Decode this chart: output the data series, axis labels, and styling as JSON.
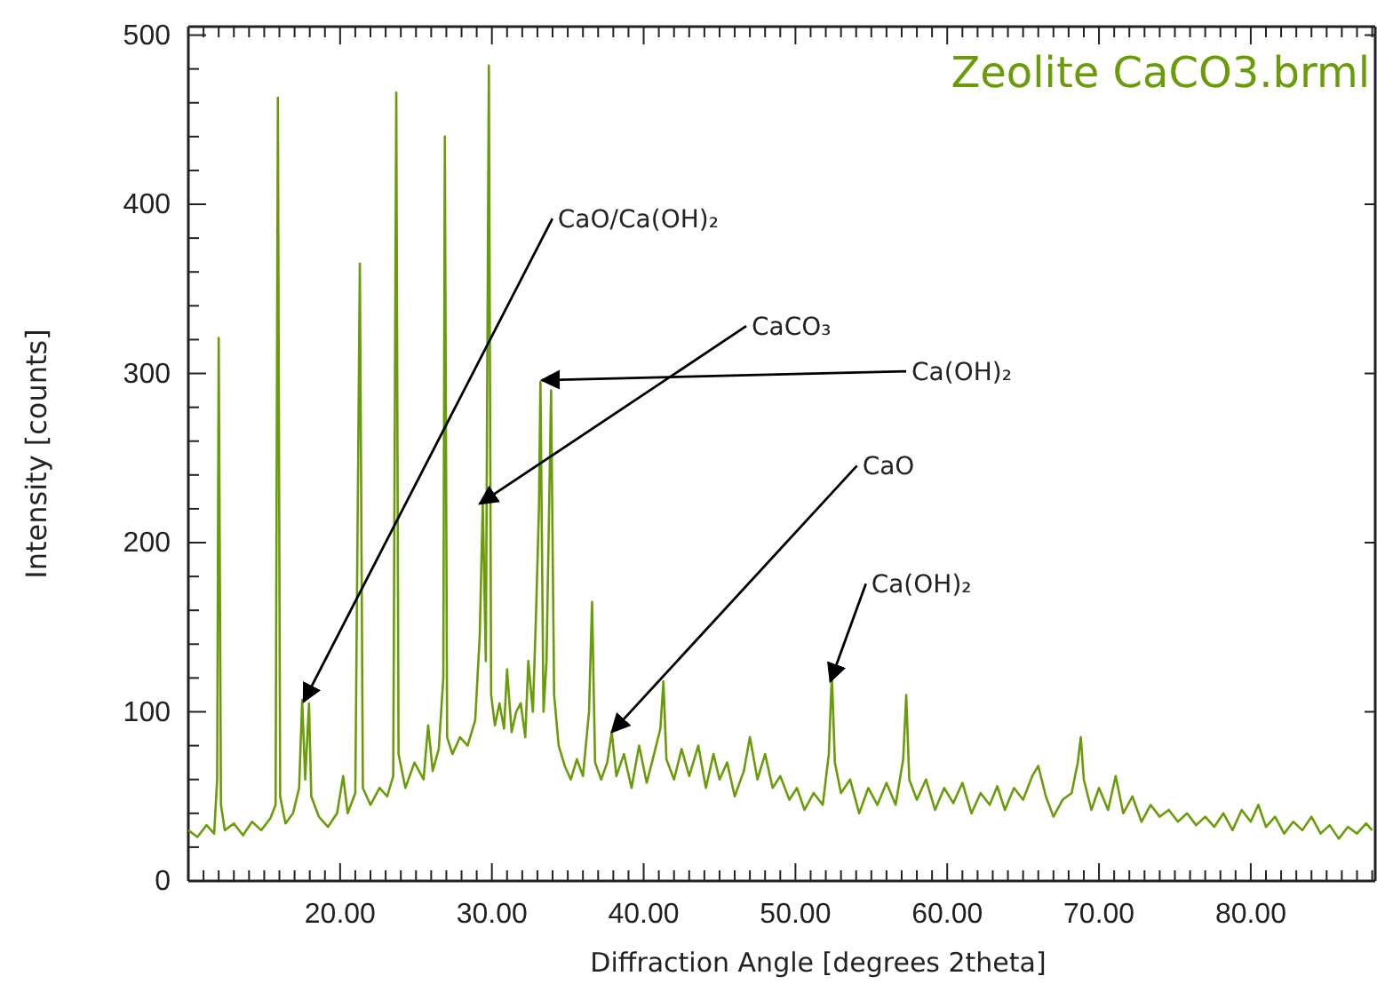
{
  "chart_data": {
    "type": "line",
    "title": "Zeolite CaCO3.brml",
    "xlabel": "Diffraction Angle [degrees 2theta]",
    "ylabel": "Intensity [counts]",
    "xlim": [
      10,
      88.2
    ],
    "ylim": [
      0,
      505
    ],
    "xticks": [
      {
        "value": 11,
        "label": null
      },
      {
        "value": 12,
        "label": null
      },
      {
        "value": 13,
        "label": null
      },
      {
        "value": 14,
        "label": null
      },
      {
        "value": 15,
        "label": null
      },
      {
        "value": 16,
        "label": null
      },
      {
        "value": 17,
        "label": null
      },
      {
        "value": 18,
        "label": null
      },
      {
        "value": 19,
        "label": null
      },
      {
        "value": 20,
        "label": "20.00"
      },
      {
        "value": 21,
        "label": null
      },
      {
        "value": 22,
        "label": null
      },
      {
        "value": 23,
        "label": null
      },
      {
        "value": 24,
        "label": null
      },
      {
        "value": 25,
        "label": null
      },
      {
        "value": 26,
        "label": null
      },
      {
        "value": 27,
        "label": null
      },
      {
        "value": 28,
        "label": null
      },
      {
        "value": 29,
        "label": null
      },
      {
        "value": 30,
        "label": "30.00"
      },
      {
        "value": 31,
        "label": null
      },
      {
        "value": 32,
        "label": null
      },
      {
        "value": 33,
        "label": null
      },
      {
        "value": 34,
        "label": null
      },
      {
        "value": 35,
        "label": null
      },
      {
        "value": 36,
        "label": null
      },
      {
        "value": 37,
        "label": null
      },
      {
        "value": 38,
        "label": null
      },
      {
        "value": 39,
        "label": null
      },
      {
        "value": 40,
        "label": "40.00"
      },
      {
        "value": 41,
        "label": null
      },
      {
        "value": 42,
        "label": null
      },
      {
        "value": 43,
        "label": null
      },
      {
        "value": 44,
        "label": null
      },
      {
        "value": 45,
        "label": null
      },
      {
        "value": 46,
        "label": null
      },
      {
        "value": 47,
        "label": null
      },
      {
        "value": 48,
        "label": null
      },
      {
        "value": 49,
        "label": null
      },
      {
        "value": 50,
        "label": "50.00"
      },
      {
        "value": 51,
        "label": null
      },
      {
        "value": 52,
        "label": null
      },
      {
        "value": 53,
        "label": null
      },
      {
        "value": 54,
        "label": null
      },
      {
        "value": 55,
        "label": null
      },
      {
        "value": 56,
        "label": null
      },
      {
        "value": 57,
        "label": null
      },
      {
        "value": 58,
        "label": null
      },
      {
        "value": 59,
        "label": null
      },
      {
        "value": 60,
        "label": "60.00"
      },
      {
        "value": 61,
        "label": null
      },
      {
        "value": 62,
        "label": null
      },
      {
        "value": 63,
        "label": null
      },
      {
        "value": 64,
        "label": null
      },
      {
        "value": 65,
        "label": null
      },
      {
        "value": 66,
        "label": null
      },
      {
        "value": 67,
        "label": null
      },
      {
        "value": 68,
        "label": null
      },
      {
        "value": 69,
        "label": null
      },
      {
        "value": 70,
        "label": "70.00"
      },
      {
        "value": 71,
        "label": null
      },
      {
        "value": 72,
        "label": null
      },
      {
        "value": 73,
        "label": null
      },
      {
        "value": 74,
        "label": null
      },
      {
        "value": 75,
        "label": null
      },
      {
        "value": 76,
        "label": null
      },
      {
        "value": 77,
        "label": null
      },
      {
        "value": 78,
        "label": null
      },
      {
        "value": 79,
        "label": null
      },
      {
        "value": 80,
        "label": "80.00"
      },
      {
        "value": 81,
        "label": null
      },
      {
        "value": 82,
        "label": null
      },
      {
        "value": 83,
        "label": null
      },
      {
        "value": 84,
        "label": null
      },
      {
        "value": 85,
        "label": null
      },
      {
        "value": 86,
        "label": null
      },
      {
        "value": 87,
        "label": null
      },
      {
        "value": 88,
        "label": null
      }
    ],
    "yticks": [
      0,
      {
        "value": 20,
        "label": null
      },
      {
        "value": 40,
        "label": null
      },
      {
        "value": 60,
        "label": null
      },
      {
        "value": 80,
        "label": null
      },
      100,
      {
        "value": 120,
        "label": null
      },
      {
        "value": 140,
        "label": null
      },
      {
        "value": 160,
        "label": null
      },
      {
        "value": 180,
        "label": null
      },
      200,
      {
        "value": 220,
        "label": null
      },
      {
        "value": 240,
        "label": null
      },
      {
        "value": 260,
        "label": null
      },
      {
        "value": 280,
        "label": null
      },
      300,
      {
        "value": 320,
        "label": null
      },
      {
        "value": 340,
        "label": null
      },
      {
        "value": 360,
        "label": null
      },
      {
        "value": 380,
        "label": null
      },
      400,
      {
        "value": 420,
        "label": null
      },
      {
        "value": 440,
        "label": null
      },
      {
        "value": 460,
        "label": null
      },
      {
        "value": 480,
        "label": null
      },
      500
    ],
    "annotations": [
      {
        "text": "CaO/Ca(OH)₂",
        "x": 17.6,
        "y": 106
      },
      {
        "text": "CaCO₃",
        "x": 29.2,
        "y": 223
      },
      {
        "text": "Ca(OH)₂",
        "x": 33.3,
        "y": 296
      },
      {
        "text": "CaO",
        "x": 37.9,
        "y": 88
      },
      {
        "text": "Ca(OH)₂",
        "x": 52.3,
        "y": 118
      }
    ],
    "series": [
      {
        "color": "#6a9c0a",
        "x": [
          10.0,
          10.6,
          11.2,
          11.7,
          11.9,
          12.0,
          12.15,
          12.4,
          13.0,
          13.6,
          14.2,
          14.8,
          15.4,
          15.75,
          15.9,
          16.05,
          16.4,
          16.9,
          17.3,
          17.5,
          17.7,
          17.95,
          18.1,
          18.6,
          19.2,
          19.8,
          20.2,
          20.5,
          21.0,
          21.3,
          21.5,
          22.0,
          22.6,
          23.1,
          23.5,
          23.7,
          23.85,
          24.3,
          24.9,
          25.5,
          25.8,
          26.1,
          26.5,
          26.8,
          26.9,
          27.05,
          27.4,
          27.9,
          28.4,
          28.9,
          29.2,
          29.4,
          29.6,
          29.8,
          29.95,
          30.2,
          30.5,
          30.8,
          31.0,
          31.3,
          31.6,
          31.9,
          32.2,
          32.4,
          32.7,
          32.9,
          33.1,
          33.2,
          33.4,
          33.6,
          33.9,
          34.1,
          34.4,
          34.8,
          35.2,
          35.6,
          36.0,
          36.4,
          36.6,
          36.8,
          37.2,
          37.6,
          37.9,
          38.2,
          38.7,
          39.2,
          39.7,
          40.2,
          40.6,
          41.1,
          41.3,
          41.5,
          42.0,
          42.5,
          43.0,
          43.6,
          44.1,
          44.6,
          45.0,
          45.5,
          46.0,
          46.6,
          47.0,
          47.5,
          48.0,
          48.5,
          49.0,
          49.6,
          50.1,
          50.6,
          51.2,
          51.8,
          52.2,
          52.4,
          52.6,
          53.0,
          53.6,
          54.2,
          54.8,
          55.4,
          56.0,
          56.6,
          57.1,
          57.3,
          57.5,
          58.0,
          58.6,
          59.2,
          59.8,
          60.4,
          61.0,
          61.6,
          62.2,
          62.8,
          63.3,
          63.8,
          64.4,
          65.0,
          65.6,
          66.0,
          66.5,
          67.0,
          67.6,
          68.2,
          68.6,
          68.8,
          69.0,
          69.5,
          70.0,
          70.6,
          71.1,
          71.6,
          72.2,
          72.8,
          73.4,
          74.0,
          74.6,
          75.2,
          75.8,
          76.4,
          77.0,
          77.6,
          78.2,
          78.8,
          79.4,
          80.0,
          80.5,
          81.0,
          81.6,
          82.2,
          82.8,
          83.4,
          84.0,
          84.6,
          85.2,
          85.8,
          86.4,
          87.0,
          87.6,
          88.0
        ],
        "values": [
          30,
          26,
          33,
          28,
          60,
          321,
          45,
          30,
          34,
          27,
          35,
          30,
          37,
          45,
          463,
          50,
          34,
          40,
          55,
          107,
          60,
          105,
          50,
          38,
          32,
          40,
          62,
          40,
          52,
          365,
          55,
          45,
          55,
          50,
          62,
          466,
          75,
          55,
          70,
          60,
          92,
          65,
          78,
          120,
          440,
          85,
          75,
          85,
          80,
          95,
          145,
          224,
          130,
          482,
          110,
          92,
          105,
          90,
          125,
          88,
          100,
          105,
          85,
          130,
          100,
          155,
          220,
          295,
          100,
          130,
          290,
          110,
          80,
          68,
          60,
          72,
          62,
          100,
          165,
          70,
          60,
          70,
          88,
          62,
          75,
          55,
          80,
          58,
          72,
          90,
          118,
          72,
          60,
          78,
          62,
          80,
          55,
          75,
          60,
          70,
          50,
          65,
          85,
          60,
          75,
          55,
          62,
          48,
          55,
          42,
          52,
          45,
          75,
          122,
          70,
          52,
          60,
          40,
          55,
          45,
          58,
          45,
          72,
          110,
          60,
          48,
          60,
          42,
          55,
          46,
          58,
          40,
          52,
          45,
          56,
          42,
          55,
          48,
          62,
          68,
          50,
          38,
          48,
          52,
          70,
          85,
          60,
          42,
          55,
          42,
          62,
          40,
          50,
          35,
          45,
          38,
          42,
          35,
          40,
          33,
          38,
          32,
          40,
          30,
          42,
          35,
          45,
          32,
          38,
          28,
          35,
          30,
          38,
          28,
          33,
          25,
          32,
          28,
          34,
          30
        ]
      }
    ]
  }
}
